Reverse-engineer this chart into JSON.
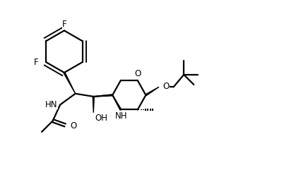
{
  "bg_color": "#ffffff",
  "line_color": "#000000",
  "line_width": 1.6,
  "figsize": [
    4.26,
    2.58
  ],
  "dpi": 100,
  "xlim": [
    0,
    10
  ],
  "ylim": [
    0,
    6.2
  ]
}
